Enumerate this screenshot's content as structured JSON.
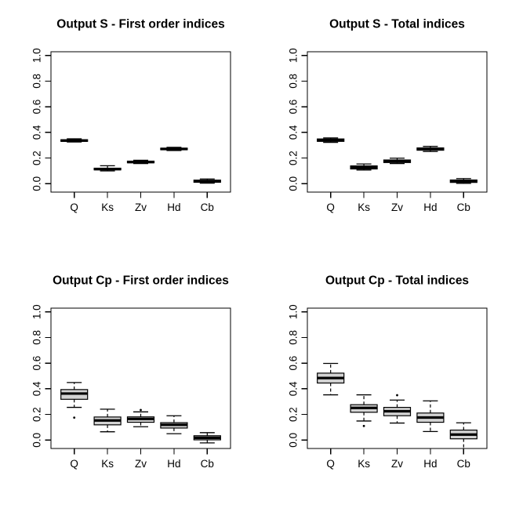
{
  "page": {
    "background": "#ffffff",
    "foreground": "#000000"
  },
  "colors": {
    "box_fill": "#d3d3d3",
    "box_border": "#000000",
    "median": "#000000",
    "axis": "#000000"
  },
  "chart_data": [
    {
      "type": "boxplot",
      "title": "Output S - First order indices",
      "categories": [
        "Q",
        "Ks",
        "Zv",
        "Hd",
        "Cb"
      ],
      "xlabel": "",
      "ylabel": "",
      "ylim": [
        0,
        1
      ],
      "grid": false,
      "legend": false,
      "yticks": [
        0.0,
        0.2,
        0.4,
        0.6,
        0.8,
        1.0
      ],
      "ytick_labels": [
        "0.0",
        "0.2",
        "0.4",
        "0.6",
        "0.8",
        "1.0"
      ],
      "box_fill": "#d3d3d3",
      "stats": [
        {
          "category": "Q",
          "low": 0.325,
          "q1": 0.33,
          "median": 0.336,
          "q3": 0.343,
          "high": 0.35,
          "outliers": []
        },
        {
          "category": "Ks",
          "low": 0.1,
          "q1": 0.108,
          "median": 0.114,
          "q3": 0.121,
          "high": 0.14,
          "outliers": []
        },
        {
          "category": "Zv",
          "low": 0.157,
          "q1": 0.163,
          "median": 0.169,
          "q3": 0.176,
          "high": 0.183,
          "outliers": []
        },
        {
          "category": "Hd",
          "low": 0.259,
          "q1": 0.265,
          "median": 0.271,
          "q3": 0.277,
          "high": 0.284,
          "outliers": []
        },
        {
          "category": "Cb",
          "low": 0.004,
          "q1": 0.011,
          "median": 0.019,
          "q3": 0.028,
          "high": 0.037,
          "outliers": []
        }
      ]
    },
    {
      "type": "boxplot",
      "title": "Output S - Total indices",
      "categories": [
        "Q",
        "Ks",
        "Zv",
        "Hd",
        "Cb"
      ],
      "xlabel": "",
      "ylabel": "",
      "ylim": [
        0,
        1
      ],
      "grid": false,
      "legend": false,
      "yticks": [
        0.0,
        0.2,
        0.4,
        0.6,
        0.8,
        1.0
      ],
      "ytick_labels": [
        "0.0",
        "0.2",
        "0.4",
        "0.6",
        "0.8",
        "1.0"
      ],
      "box_fill": "#d3d3d3",
      "stats": [
        {
          "category": "Q",
          "low": 0.322,
          "q1": 0.33,
          "median": 0.339,
          "q3": 0.349,
          "high": 0.357,
          "outliers": []
        },
        {
          "category": "Ks",
          "low": 0.107,
          "q1": 0.115,
          "median": 0.127,
          "q3": 0.139,
          "high": 0.154,
          "outliers": []
        },
        {
          "category": "Zv",
          "low": 0.157,
          "q1": 0.165,
          "median": 0.174,
          "q3": 0.185,
          "high": 0.199,
          "outliers": []
        },
        {
          "category": "Hd",
          "low": 0.251,
          "q1": 0.261,
          "median": 0.27,
          "q3": 0.279,
          "high": 0.291,
          "outliers": []
        },
        {
          "category": "Cb",
          "low": 0.003,
          "q1": 0.01,
          "median": 0.019,
          "q3": 0.029,
          "high": 0.04,
          "outliers": []
        }
      ]
    },
    {
      "type": "boxplot",
      "title": "Output Cp - First order indices",
      "categories": [
        "Q",
        "Ks",
        "Zv",
        "Hd",
        "Cb"
      ],
      "xlabel": "",
      "ylabel": "",
      "ylim": [
        0,
        1
      ],
      "grid": false,
      "legend": false,
      "yticks": [
        0.0,
        0.2,
        0.4,
        0.6,
        0.8,
        1.0
      ],
      "ytick_labels": [
        "0.0",
        "0.2",
        "0.4",
        "0.6",
        "0.8",
        "1.0"
      ],
      "box_fill": "#d3d3d3",
      "stats": [
        {
          "category": "Q",
          "low": 0.255,
          "q1": 0.318,
          "median": 0.363,
          "q3": 0.394,
          "high": 0.449,
          "outliers": [
            0.175
          ]
        },
        {
          "category": "Ks",
          "low": 0.065,
          "q1": 0.119,
          "median": 0.153,
          "q3": 0.18,
          "high": 0.241,
          "outliers": []
        },
        {
          "category": "Zv",
          "low": 0.104,
          "q1": 0.139,
          "median": 0.165,
          "q3": 0.181,
          "high": 0.22,
          "outliers": [
            0.235
          ]
        },
        {
          "category": "Hd",
          "low": 0.05,
          "q1": 0.094,
          "median": 0.119,
          "q3": 0.136,
          "high": 0.19,
          "outliers": []
        },
        {
          "category": "Cb",
          "low": -0.022,
          "q1": 0.002,
          "median": 0.018,
          "q3": 0.034,
          "high": 0.058,
          "outliers": []
        }
      ]
    },
    {
      "type": "boxplot",
      "title": "Output Cp - Total indices",
      "categories": [
        "Q",
        "Ks",
        "Zv",
        "Hd",
        "Cb"
      ],
      "xlabel": "",
      "ylabel": "",
      "ylim": [
        0,
        1
      ],
      "grid": false,
      "legend": false,
      "yticks": [
        0.0,
        0.2,
        0.4,
        0.6,
        0.8,
        1.0
      ],
      "ytick_labels": [
        "0.0",
        "0.2",
        "0.4",
        "0.6",
        "0.8",
        "1.0"
      ],
      "box_fill": "#d3d3d3",
      "stats": [
        {
          "category": "Q",
          "low": 0.353,
          "q1": 0.445,
          "median": 0.484,
          "q3": 0.522,
          "high": 0.598,
          "outliers": []
        },
        {
          "category": "Ks",
          "low": 0.149,
          "q1": 0.217,
          "median": 0.251,
          "q3": 0.276,
          "high": 0.353,
          "outliers": [
            0.11
          ]
        },
        {
          "category": "Zv",
          "low": 0.133,
          "q1": 0.19,
          "median": 0.225,
          "q3": 0.255,
          "high": 0.312,
          "outliers": [
            0.35
          ]
        },
        {
          "category": "Hd",
          "low": 0.067,
          "q1": 0.139,
          "median": 0.176,
          "q3": 0.211,
          "high": 0.306,
          "outliers": []
        },
        {
          "category": "Cb",
          "low": -0.08,
          "q1": 0.01,
          "median": 0.043,
          "q3": 0.078,
          "high": 0.135,
          "outliers": []
        }
      ]
    }
  ]
}
